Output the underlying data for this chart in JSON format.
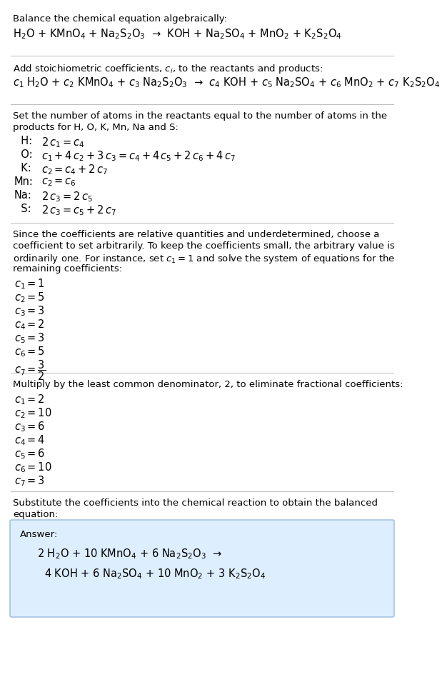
{
  "title_section": "Balance the chemical equation algebraically:",
  "equation_line": "H$_2$O + KMnO$_4$ + Na$_2$S$_2$O$_3$  →  KOH + Na$_2$SO$_4$ + MnO$_2$ + K$_2$S$_2$O$_4$",
  "section2_title": "Add stoichiometric coefficients, $c_i$, to the reactants and products:",
  "equation2_line": "$c_1$ H$_2$O + $c_2$ KMnO$_4$ + $c_3$ Na$_2$S$_2$O$_3$  →  $c_4$ KOH + $c_5$ Na$_2$SO$_4$ + $c_6$ MnO$_2$ + $c_7$ K$_2$S$_2$O$_4$",
  "section3_line1": "Set the number of atoms in the reactants equal to the number of atoms in the",
  "section3_line2": "products for H, O, K, Mn, Na and S:",
  "atom_equations": [
    [
      "  H:",
      "2\\,c_1 = c_4"
    ],
    [
      "  O:",
      "c_1 + 4\\,c_2 + 3\\,c_3 = c_4 + 4\\,c_5 + 2\\,c_6 + 4\\,c_7"
    ],
    [
      "  K:",
      "c_2 = c_4 + 2\\,c_7"
    ],
    [
      "Mn:",
      "c_2 = c_6"
    ],
    [
      "Na:",
      "2\\,c_3 = 2\\,c_5"
    ],
    [
      "  S:",
      "2\\,c_3 = c_5 + 2\\,c_7"
    ]
  ],
  "section4_line1": "Since the coefficients are relative quantities and underdetermined, choose a",
  "section4_line2": "coefficient to set arbitrarily. To keep the coefficients small, the arbitrary value is",
  "section4_line3": "ordinarily one. For instance, set $c_1 = 1$ and solve the system of equations for the",
  "section4_line4": "remaining coefficients:",
  "coeff_initial": [
    "$c_1 = 1$",
    "$c_2 = 5$",
    "$c_3 = 3$",
    "$c_4 = 2$",
    "$c_5 = 3$",
    "$c_6 = 5$",
    "$c_7 = \\dfrac{3}{2}$"
  ],
  "section5_title": "Multiply by the least common denominator, 2, to eliminate fractional coefficients:",
  "coeff_final": [
    "$c_1 = 2$",
    "$c_2 = 10$",
    "$c_3 = 6$",
    "$c_4 = 4$",
    "$c_5 = 6$",
    "$c_6 = 10$",
    "$c_7 = 3$"
  ],
  "section6_line1": "Substitute the coefficients into the chemical reaction to obtain the balanced",
  "section6_line2": "equation:",
  "answer_label": "Answer:",
  "answer_line1": "2 H$_2$O + 10 KMnO$_4$ + 6 Na$_2$S$_2$O$_3$  →",
  "answer_line2": "4 KOH + 6 Na$_2$SO$_4$ + 10 MnO$_2$ + 3 K$_2$S$_2$O$_4$",
  "bg_color": "#ffffff",
  "answer_box_color": "#ddeeff",
  "answer_box_edge": "#99bbdd",
  "text_color": "#000000",
  "separator_color": "#bbbbbb",
  "font_size": 9.5,
  "math_font_size": 10.5
}
